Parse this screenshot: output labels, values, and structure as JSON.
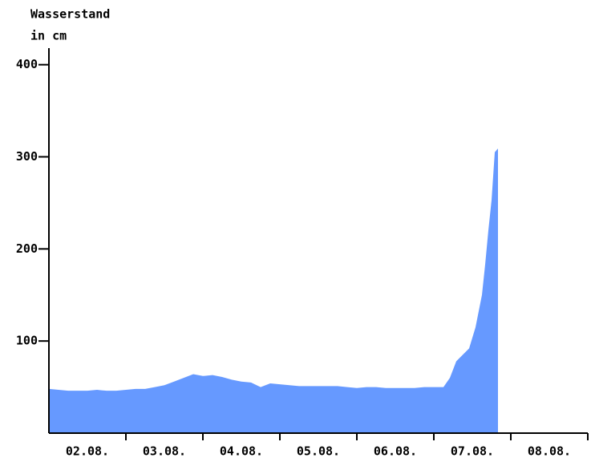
{
  "chart_data": {
    "type": "area",
    "ylabel_lines": [
      "Wasserstand",
      "in cm"
    ],
    "categories": [
      "02.08.",
      "03.08.",
      "04.08.",
      "05.08.",
      "06.08.",
      "07.08.",
      "08.08."
    ],
    "xlim": [
      0,
      168
    ],
    "xticks": [
      24,
      48,
      72,
      96,
      120,
      144,
      168
    ],
    "ylim": [
      0,
      418
    ],
    "yticks": [
      100,
      200,
      300,
      400
    ],
    "series": [
      {
        "color": "#6699ff",
        "x": [
          0,
          3,
          6,
          9,
          12,
          15,
          18,
          21,
          24,
          27,
          30,
          33,
          36,
          39,
          42,
          45,
          48,
          51,
          54,
          57,
          60,
          63,
          66,
          69,
          72,
          75,
          78,
          81,
          84,
          87,
          90,
          93,
          96,
          99,
          102,
          105,
          108,
          111,
          114,
          117,
          120,
          123,
          125,
          127,
          129,
          131,
          133,
          135,
          136,
          137,
          138,
          139,
          140
        ],
        "values": [
          48,
          47,
          46,
          46,
          46,
          47,
          46,
          46,
          47,
          48,
          48,
          50,
          52,
          56,
          60,
          64,
          62,
          63,
          61,
          58,
          56,
          55,
          50,
          54,
          53,
          52,
          51,
          51,
          51,
          51,
          51,
          50,
          49,
          50,
          50,
          49,
          49,
          49,
          49,
          50,
          50,
          50,
          60,
          78,
          85,
          92,
          115,
          150,
          183,
          220,
          253,
          305,
          309
        ]
      }
    ]
  }
}
